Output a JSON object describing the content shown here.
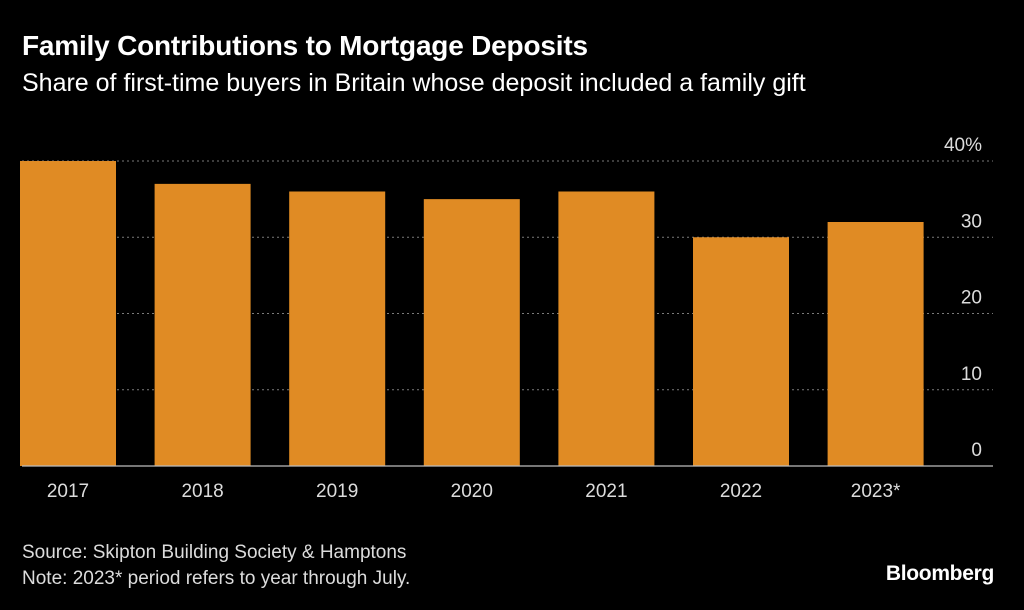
{
  "header": {
    "title": "Family Contributions to Mortgage Deposits",
    "subtitle": "Share of first-time buyers in Britain whose deposit included a family gift"
  },
  "chart_data": {
    "type": "bar",
    "categories": [
      "2017",
      "2018",
      "2019",
      "2020",
      "2021",
      "2022",
      "2023*"
    ],
    "values": [
      40,
      37,
      36,
      35,
      36,
      30,
      32
    ],
    "ylim": [
      0,
      40
    ],
    "yticks": [
      0,
      10,
      20,
      30,
      40
    ],
    "ytick_labels": [
      "0",
      "10",
      "20",
      "30",
      "40%"
    ],
    "y_axis_position": "right",
    "grid": true,
    "bar_color": "#e08b24"
  },
  "footer": {
    "source": "Source: Skipton Building Society & Hamptons",
    "note": "Note: 2023* period refers to year through July.",
    "brand": "Bloomberg"
  }
}
